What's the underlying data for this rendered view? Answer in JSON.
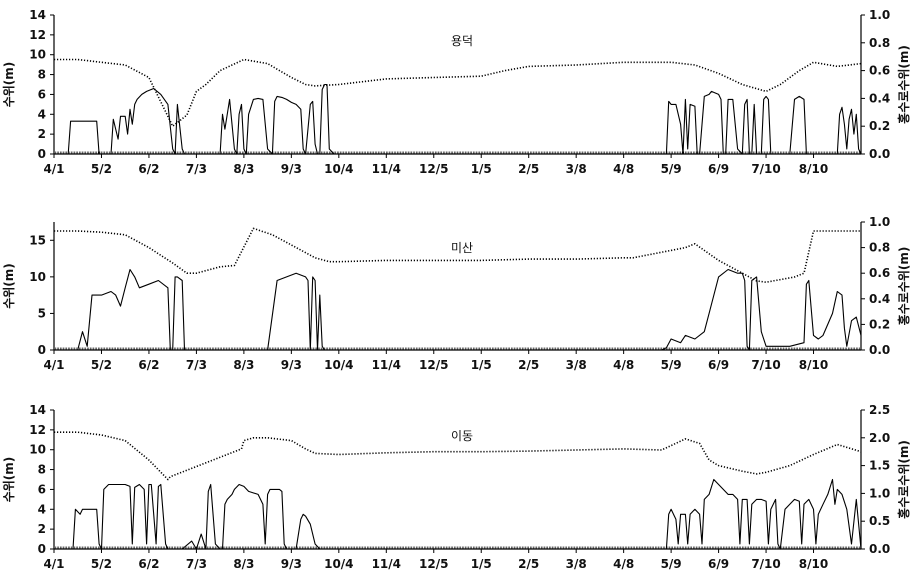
{
  "chart_data": [
    {
      "type": "line",
      "title": "용덕",
      "ylabel": "수위(m)",
      "y2label": "홍수로수위(m)",
      "ylim": [
        0,
        14
      ],
      "y2lim": [
        0,
        1.0
      ],
      "yticks": [
        0,
        2,
        4,
        6,
        8,
        10,
        12,
        14
      ],
      "y2ticks": [
        "0.0",
        "0.2",
        "0.4",
        "0.6",
        "0.8",
        "1.0"
      ],
      "categories": [
        "4/1",
        "5/2",
        "6/2",
        "7/3",
        "8/3",
        "9/3",
        "10/4",
        "11/4",
        "12/5",
        "1/5",
        "2/5",
        "3/8",
        "4/8",
        "5/9",
        "6/9",
        "7/10",
        "8/10"
      ],
      "series": [
        {
          "axis": "right",
          "style": "dotted",
          "x": [
            0,
            0.5,
            1.0,
            1.5,
            2.0,
            2.5,
            2.8,
            3.0,
            3.2,
            3.5,
            4.0,
            4.5,
            5.0,
            5.3,
            5.5,
            6.0,
            7.0,
            8.0,
            9.0,
            9.5,
            10.0,
            11.0,
            12.0,
            13.0,
            13.5,
            14.0,
            14.5,
            15.0,
            15.3,
            15.7,
            16.0,
            16.5,
            17.0
          ],
          "values": [
            0.68,
            0.68,
            0.66,
            0.64,
            0.55,
            0.2,
            0.28,
            0.45,
            0.5,
            0.6,
            0.68,
            0.65,
            0.55,
            0.5,
            0.49,
            0.5,
            0.54,
            0.55,
            0.56,
            0.6,
            0.63,
            0.64,
            0.66,
            0.66,
            0.64,
            0.58,
            0.5,
            0.45,
            0.5,
            0.6,
            0.66,
            0.63,
            0.65
          ]
        },
        {
          "axis": "left",
          "style": "solid",
          "x": [
            0,
            0.3,
            0.35,
            0.9,
            0.95,
            1.2,
            1.25,
            1.35,
            1.4,
            1.5,
            1.55,
            1.6,
            1.65,
            1.7,
            1.75,
            1.85,
            1.95,
            2.1,
            2.25,
            2.4,
            2.5,
            2.55,
            2.6,
            2.7,
            2.75,
            3.2,
            3.5,
            3.55,
            3.6,
            3.7,
            3.8,
            3.85,
            3.9,
            3.95,
            4.0,
            4.05,
            4.1,
            4.2,
            4.3,
            4.4,
            4.5,
            4.6,
            4.65,
            4.7,
            4.8,
            4.9,
            5.0,
            5.1,
            5.2,
            5.25,
            5.3,
            5.4,
            5.45,
            5.5,
            5.55,
            5.6,
            5.65,
            5.7,
            5.75,
            5.8,
            5.9,
            6.0,
            12.9,
            12.95,
            13.0,
            13.1,
            13.2,
            13.25,
            13.3,
            13.35,
            13.4,
            13.5,
            13.55,
            13.6,
            13.7,
            13.8,
            13.85,
            13.9,
            14.0,
            14.05,
            14.1,
            14.15,
            14.2,
            14.3,
            14.4,
            14.5,
            14.55,
            14.6,
            14.65,
            14.7,
            14.75,
            14.8,
            14.9,
            14.95,
            15.0,
            15.05,
            15.1,
            15.2,
            15.3,
            15.5,
            15.6,
            15.7,
            15.8,
            15.85,
            15.9,
            16.5,
            16.55,
            16.6,
            16.65,
            16.7,
            16.75,
            16.8,
            16.85,
            16.9,
            16.95,
            17.0
          ],
          "values": [
            0,
            0,
            3.3,
            3.3,
            0,
            0,
            3.5,
            1.5,
            3.8,
            3.8,
            2.0,
            4.5,
            3.0,
            5.0,
            5.5,
            6.0,
            6.3,
            6.6,
            6.0,
            5.0,
            0.5,
            0,
            5.0,
            0.5,
            0,
            0,
            0,
            4.0,
            2.5,
            5.5,
            0.5,
            0,
            4.0,
            5.0,
            0.5,
            0,
            4.0,
            5.5,
            5.6,
            5.5,
            0.5,
            0,
            5.3,
            5.8,
            5.7,
            5.5,
            5.2,
            5.0,
            4.5,
            0.5,
            0,
            5.0,
            5.3,
            1.0,
            0,
            0,
            6.5,
            7.0,
            7.0,
            0.5,
            0,
            0,
            0,
            5.3,
            5.0,
            5.0,
            3.0,
            0,
            5.5,
            0.5,
            5.0,
            4.8,
            0,
            0,
            5.8,
            6.0,
            6.3,
            6.2,
            6.0,
            5.5,
            0,
            0,
            5.5,
            5.5,
            0.5,
            0,
            5.0,
            5.5,
            0,
            0,
            5.0,
            0,
            0,
            5.5,
            5.8,
            5.5,
            0,
            0,
            0,
            0,
            5.5,
            5.8,
            5.5,
            0,
            0,
            0,
            4.0,
            4.7,
            3.0,
            0.5,
            3.5,
            4.5,
            2.0,
            4.0,
            0.5,
            0
          ]
        }
      ]
    },
    {
      "type": "line",
      "title": "미산",
      "ylabel": "수위(m)",
      "y2label": "홍수로수위(m)",
      "ylim": [
        0,
        17.5
      ],
      "y2lim": [
        0,
        1.0
      ],
      "yticks": [
        0,
        5,
        10,
        15
      ],
      "y2ticks": [
        "0.0",
        "0.2",
        "0.4",
        "0.6",
        "0.8",
        "1.0"
      ],
      "categories": [
        "4/1",
        "5/2",
        "6/2",
        "7/3",
        "8/3",
        "9/3",
        "10/4",
        "11/4",
        "12/5",
        "1/5",
        "2/5",
        "3/8",
        "4/8",
        "5/9",
        "6/9",
        "7/10",
        "8/10"
      ],
      "series": [
        {
          "axis": "right",
          "style": "dotted",
          "x": [
            0,
            0.5,
            1.0,
            1.5,
            2.0,
            2.5,
            2.8,
            3.0,
            3.5,
            3.8,
            4.2,
            4.6,
            5.0,
            5.5,
            5.8,
            6.0,
            7.0,
            8.0,
            9.0,
            10.0,
            11.0,
            12.0,
            12.2,
            13.3,
            13.5,
            14.0,
            14.5,
            14.8,
            15.0,
            15.3,
            15.6,
            15.8,
            16.0,
            16.5,
            17.0
          ],
          "values": [
            0.93,
            0.93,
            0.92,
            0.9,
            0.8,
            0.68,
            0.6,
            0.6,
            0.65,
            0.66,
            0.95,
            0.9,
            0.82,
            0.72,
            0.69,
            0.69,
            0.7,
            0.7,
            0.7,
            0.71,
            0.71,
            0.72,
            0.72,
            0.8,
            0.83,
            0.7,
            0.6,
            0.54,
            0.53,
            0.55,
            0.57,
            0.6,
            0.93,
            0.93,
            0.93
          ]
        },
        {
          "axis": "left",
          "style": "solid",
          "x": [
            0,
            0.5,
            0.6,
            0.7,
            0.8,
            1.0,
            1.2,
            1.3,
            1.4,
            1.5,
            1.6,
            1.7,
            1.8,
            2.0,
            2.2,
            2.4,
            2.45,
            2.5,
            2.55,
            2.6,
            2.7,
            2.75,
            3.4,
            4.4,
            4.5,
            4.7,
            4.9,
            5.1,
            5.3,
            5.35,
            5.4,
            5.45,
            5.5,
            5.55,
            5.6,
            5.65,
            5.7,
            6.0,
            12.8,
            12.9,
            13.0,
            13.2,
            13.3,
            13.5,
            13.7,
            13.8,
            14.0,
            14.2,
            14.4,
            14.5,
            14.55,
            14.6,
            14.65,
            14.7,
            14.8,
            14.9,
            15.0,
            15.5,
            15.8,
            15.85,
            15.9,
            16.0,
            16.1,
            16.2,
            16.4,
            16.5,
            16.6,
            16.65,
            16.7,
            16.8,
            16.9,
            17.0
          ],
          "values": [
            0,
            0,
            2.5,
            0.5,
            7.5,
            7.5,
            8.0,
            7.5,
            6.0,
            8.5,
            11.0,
            10.0,
            8.5,
            9.0,
            9.5,
            8.5,
            0,
            0,
            10.0,
            10.0,
            9.5,
            0,
            0,
            0,
            0,
            9.5,
            10.0,
            10.5,
            10.0,
            9.5,
            0,
            10.0,
            9.5,
            0,
            7.5,
            0.5,
            0,
            0,
            0,
            0.3,
            1.5,
            1.0,
            2.0,
            1.5,
            2.5,
            5.0,
            10.0,
            11.0,
            10.5,
            10.5,
            9.5,
            0.5,
            0,
            9.5,
            10.0,
            2.5,
            0.5,
            0.5,
            1.0,
            9.0,
            9.5,
            2.0,
            1.5,
            2.0,
            5.0,
            8.0,
            7.5,
            3.0,
            0.5,
            4.0,
            4.5,
            2.0
          ]
        }
      ]
    },
    {
      "type": "line",
      "title": "이동",
      "ylabel": "수위(m)",
      "y2label": "홍수로수위(m)",
      "ylim": [
        0,
        14
      ],
      "y2lim": [
        0,
        2.5
      ],
      "yticks": [
        0,
        2,
        4,
        6,
        8,
        10,
        12,
        14
      ],
      "y2ticks": [
        "0.0",
        "0.5",
        "1.0",
        "1.5",
        "2.0",
        "2.5"
      ],
      "categories": [
        "4/1",
        "5/2",
        "6/2",
        "7/3",
        "8/3",
        "9/3",
        "10/4",
        "11/4",
        "12/5",
        "1/5",
        "2/5",
        "3/8",
        "4/8",
        "5/9",
        "6/9",
        "7/10",
        "8/10"
      ],
      "series": [
        {
          "axis": "right",
          "style": "dotted",
          "x": [
            0,
            0.5,
            1.0,
            1.5,
            2.0,
            2.4,
            2.45,
            3.95,
            4.0,
            4.2,
            4.5,
            5.0,
            5.3,
            5.5,
            6.0,
            7.0,
            8.0,
            9.0,
            10.0,
            11.0,
            12.0,
            12.8,
            13.3,
            13.6,
            13.8,
            14.0,
            14.5,
            14.8,
            15.0,
            15.5,
            16.0,
            16.5,
            17.0
          ],
          "values": [
            2.1,
            2.1,
            2.05,
            1.95,
            1.6,
            1.25,
            1.3,
            1.8,
            1.95,
            2.0,
            2.0,
            1.95,
            1.8,
            1.72,
            1.7,
            1.73,
            1.75,
            1.75,
            1.76,
            1.78,
            1.8,
            1.78,
            1.98,
            1.9,
            1.6,
            1.5,
            1.4,
            1.35,
            1.38,
            1.5,
            1.7,
            1.88,
            1.75
          ]
        },
        {
          "axis": "left",
          "style": "solid",
          "x": [
            0,
            0.4,
            0.45,
            0.55,
            0.6,
            0.9,
            0.95,
            1.0,
            1.05,
            1.15,
            1.2,
            1.5,
            1.6,
            1.65,
            1.7,
            1.8,
            1.9,
            1.95,
            2.0,
            2.05,
            2.15,
            2.2,
            2.25,
            2.35,
            2.4,
            2.7,
            2.9,
            3.0,
            3.1,
            3.2,
            3.25,
            3.3,
            3.4,
            3.5,
            3.55,
            3.6,
            3.65,
            3.75,
            3.8,
            3.9,
            4.0,
            4.1,
            4.3,
            4.4,
            4.45,
            4.5,
            4.55,
            4.6,
            4.65,
            4.7,
            4.75,
            4.8,
            4.85,
            4.9,
            5.1,
            5.2,
            5.25,
            5.3,
            5.4,
            5.5,
            5.6,
            12.9,
            12.95,
            13.0,
            13.1,
            13.15,
            13.2,
            13.3,
            13.35,
            13.4,
            13.5,
            13.6,
            13.65,
            13.7,
            13.8,
            13.9,
            14.0,
            14.1,
            14.2,
            14.3,
            14.4,
            14.45,
            14.5,
            14.6,
            14.65,
            14.7,
            14.8,
            14.9,
            15.0,
            15.05,
            15.1,
            15.2,
            15.25,
            15.3,
            15.4,
            15.5,
            15.6,
            15.7,
            15.75,
            15.8,
            15.9,
            16.0,
            16.05,
            16.1,
            16.2,
            16.3,
            16.4,
            16.45,
            16.5,
            16.6,
            16.7,
            16.8,
            16.9,
            17.0
          ],
          "values": [
            0,
            0,
            4.0,
            3.5,
            4.0,
            4.0,
            0.5,
            0,
            6.0,
            6.5,
            6.5,
            6.5,
            6.3,
            0.5,
            6.2,
            6.5,
            6.0,
            0.5,
            6.5,
            6.5,
            0.5,
            6.3,
            6.5,
            0.5,
            0,
            0,
            0.8,
            0,
            1.5,
            0,
            5.8,
            6.5,
            0.5,
            0,
            0,
            4.5,
            5.0,
            5.5,
            6.0,
            6.5,
            6.3,
            5.8,
            5.5,
            4.5,
            0.5,
            5.5,
            6.0,
            6.0,
            6.0,
            6.0,
            6.0,
            5.8,
            0.5,
            0,
            0,
            3.0,
            3.5,
            3.3,
            2.5,
            0.5,
            0,
            0,
            3.5,
            4.0,
            3.0,
            0.5,
            3.5,
            3.5,
            0.5,
            3.5,
            4.0,
            3.5,
            0.5,
            5.0,
            5.5,
            7.0,
            6.5,
            6.0,
            5.5,
            5.5,
            5.0,
            0.5,
            5.0,
            5.0,
            0.5,
            4.5,
            5.0,
            5.0,
            4.8,
            0.5,
            4.0,
            5.0,
            0.5,
            0,
            4.0,
            4.5,
            5.0,
            4.8,
            0.5,
            4.5,
            5.0,
            4.0,
            0.5,
            3.5,
            4.5,
            5.5,
            7.0,
            4.5,
            6.0,
            5.5,
            4.0,
            0.5,
            5.0,
            0
          ]
        }
      ]
    }
  ]
}
